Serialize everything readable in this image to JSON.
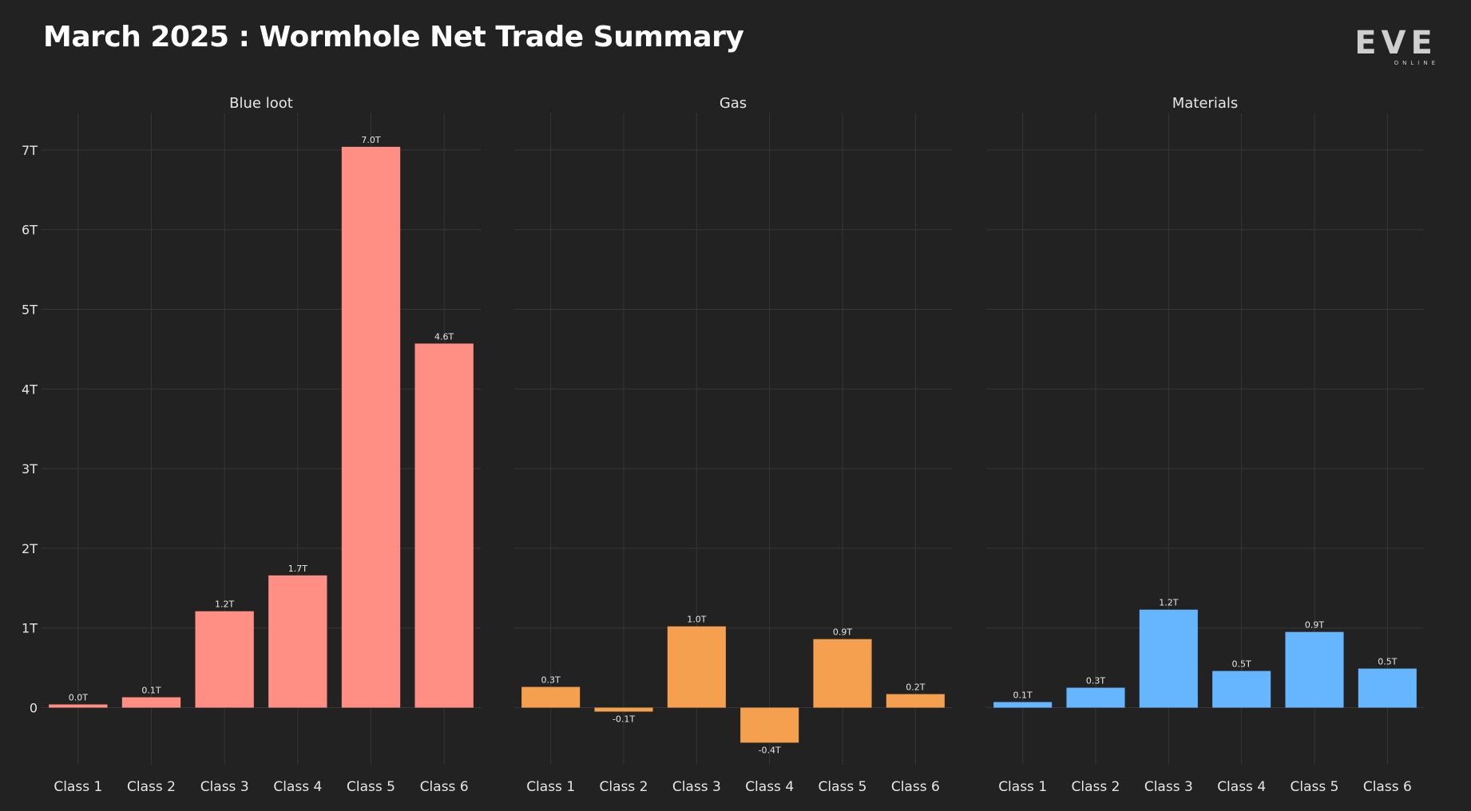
{
  "header": {
    "title": "March 2025 : Wormhole Net Trade Summary",
    "logo_text": "EVE",
    "logo_subtext": "ONLINE"
  },
  "colors": {
    "background": "#222222",
    "grid": "#363636",
    "text": "#e6e6e6",
    "blue_loot": "#ff8f85",
    "gas": "#f5a04f",
    "materials": "#66b5ff"
  },
  "chart_data": [
    {
      "type": "bar",
      "title": "Blue loot",
      "categories": [
        "Class 1",
        "Class 2",
        "Class 3",
        "Class 4",
        "Class 5",
        "Class 6"
      ],
      "values": [
        0.04,
        0.13,
        1.21,
        1.66,
        7.04,
        4.57
      ],
      "data_labels": [
        "0.0T",
        "0.1T",
        "1.2T",
        "1.7T",
        "7.0T",
        "4.6T"
      ],
      "color": "#ff8f85",
      "ylim": [
        -0.85,
        7.45
      ],
      "yticks": [
        0,
        1,
        2,
        3,
        4,
        5,
        6,
        7
      ],
      "ytick_labels": [
        "0",
        "1T",
        "2T",
        "3T",
        "4T",
        "5T",
        "6T",
        "7T"
      ],
      "grid": true
    },
    {
      "type": "bar",
      "title": "Gas",
      "categories": [
        "Class 1",
        "Class 2",
        "Class 3",
        "Class 4",
        "Class 5",
        "Class 6"
      ],
      "values": [
        0.26,
        -0.05,
        1.02,
        -0.44,
        0.86,
        0.17
      ],
      "data_labels": [
        "0.3T",
        "-0.1T",
        "1.0T",
        "-0.4T",
        "0.9T",
        "0.2T"
      ],
      "color": "#f5a04f",
      "ylim": [
        -0.85,
        7.45
      ],
      "yticks": [
        0,
        1,
        2,
        3,
        4,
        5,
        6,
        7
      ],
      "grid": true
    },
    {
      "type": "bar",
      "title": "Materials",
      "categories": [
        "Class 1",
        "Class 2",
        "Class 3",
        "Class 4",
        "Class 5",
        "Class 6"
      ],
      "values": [
        0.07,
        0.25,
        1.23,
        0.46,
        0.95,
        0.49
      ],
      "data_labels": [
        "0.1T",
        "0.3T",
        "1.2T",
        "0.5T",
        "0.9T",
        "0.5T"
      ],
      "color": "#66b5ff",
      "ylim": [
        -0.85,
        7.45
      ],
      "yticks": [
        0,
        1,
        2,
        3,
        4,
        5,
        6,
        7
      ],
      "grid": true
    }
  ]
}
